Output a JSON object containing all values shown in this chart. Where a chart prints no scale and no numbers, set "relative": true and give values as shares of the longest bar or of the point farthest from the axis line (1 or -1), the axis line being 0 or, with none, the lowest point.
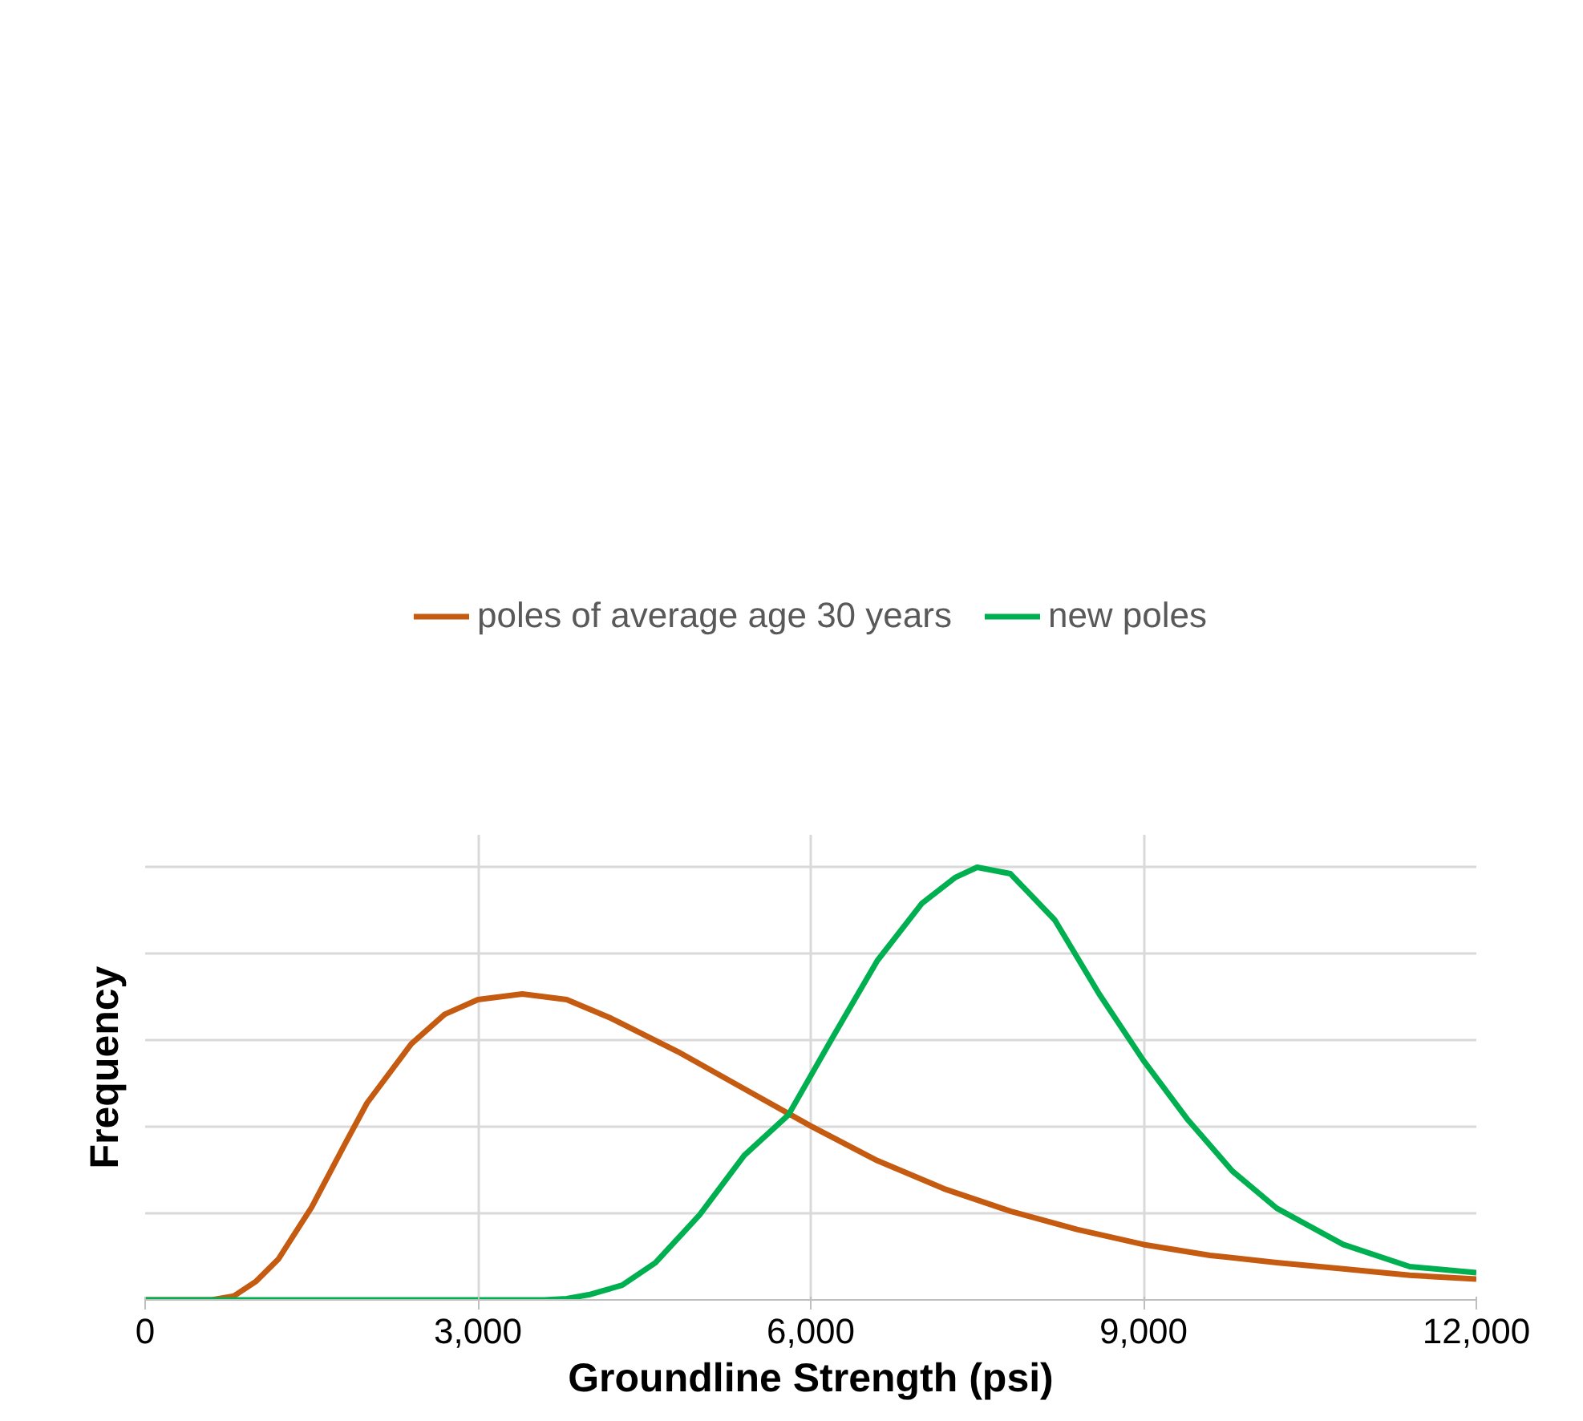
{
  "chart_data": {
    "type": "line",
    "relative": true,
    "xlabel": "Groundline Strength (psi)",
    "ylabel": "Frequency",
    "xlim": [
      0,
      12000
    ],
    "xticks": [
      0,
      {
        "value": 3000,
        "label": "3,000"
      },
      {
        "value": 6000,
        "label": "6,000"
      },
      {
        "value": 9000,
        "label": "9,000"
      },
      {
        "value": 12000,
        "label": "12,000"
      }
    ],
    "grid": true,
    "legend": "top",
    "tick_labels": "x",
    "marker": "none",
    "line_style": "solid",
    "series": [
      {
        "name": "poles of average age 30 years",
        "color": "#c55a11",
        "x": [
          0,
          600,
          800,
          1000,
          1200,
          1500,
          1800,
          2000,
          2400,
          2700,
          3000,
          3400,
          3800,
          4200,
          4800,
          5400,
          6000,
          6600,
          7200,
          7800,
          8400,
          9000,
          9600,
          10200,
          10800,
          11400,
          12000
        ],
        "values": [
          0,
          0,
          0.009,
          0.043,
          0.094,
          0.214,
          0.36,
          0.455,
          0.592,
          0.66,
          0.694,
          0.707,
          0.694,
          0.651,
          0.574,
          0.488,
          0.402,
          0.322,
          0.257,
          0.205,
          0.163,
          0.128,
          0.103,
          0.086,
          0.072,
          0.057,
          0.048
        ]
      },
      {
        "name": "new poles",
        "color": "#00b050",
        "x": [
          0,
          3600,
          3800,
          4000,
          4300,
          4600,
          5000,
          5400,
          5800,
          6200,
          6600,
          7000,
          7300,
          7500,
          7800,
          8200,
          8600,
          9000,
          9400,
          9800,
          10200,
          10800,
          11400,
          12000
        ],
        "values": [
          0,
          0,
          0.003,
          0.012,
          0.034,
          0.086,
          0.197,
          0.334,
          0.428,
          0.608,
          0.784,
          0.916,
          0.976,
          1.0,
          0.985,
          0.878,
          0.707,
          0.553,
          0.416,
          0.298,
          0.212,
          0.128,
          0.077,
          0.063
        ]
      }
    ]
  }
}
